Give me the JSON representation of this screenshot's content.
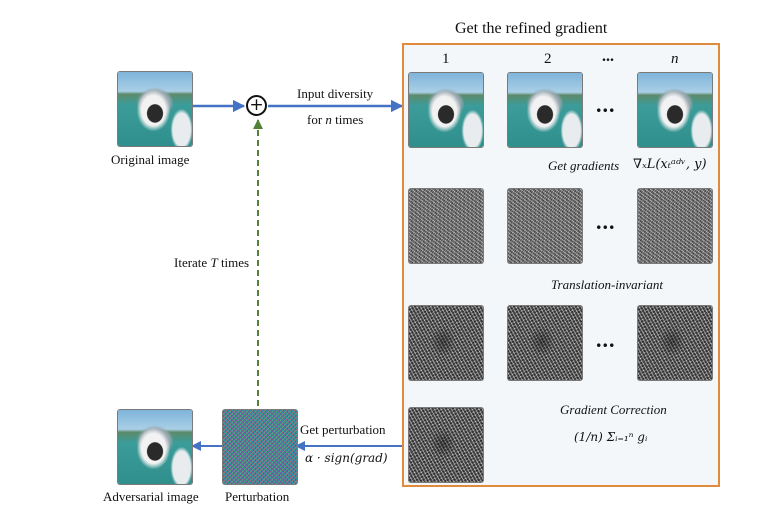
{
  "title": "Get the refined gradient",
  "column_labels": [
    "1",
    "2",
    "...",
    "n"
  ],
  "images": {
    "original": "Original image",
    "adversarial": "Adversarial image",
    "perturbation": "Perturbation"
  },
  "ellipsis": "...",
  "steps": {
    "input_diversity_1": "Input diversity",
    "input_diversity_2_pre": "for ",
    "input_diversity_2_var": "n",
    "input_diversity_2_post": " times",
    "get_gradients": "Get gradients",
    "gradient_formula": "∇ₓL(xₜᵃᵈᵛ, y)",
    "translation_invariant": "Translation-invariant",
    "gradient_correction": "Gradient Correction",
    "correction_formula": "(1/n) Σᵢ₌₁ⁿ gᵢ",
    "iterate_pre": "Iterate ",
    "iterate_var": "T",
    "iterate_post": " times",
    "get_perturbation": "Get perturbation",
    "perturbation_formula": "α · sign(grad)"
  },
  "plus_symbol": "+",
  "colors": {
    "arrow": "#4472c4",
    "box_border": "#e28a3c",
    "dashed": "#548235"
  }
}
